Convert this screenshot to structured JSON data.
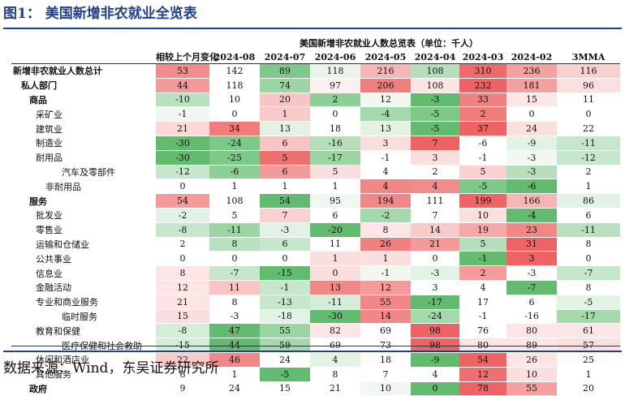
{
  "figure": {
    "title": "图1：  美国新增非农就业全览表",
    "source": "数据来源：Wind，东吴证券研究所"
  },
  "table": {
    "title": "美国新增非农就业人数总览表（单位：千人）",
    "headers": [
      "相较上个月变化",
      "2024-08",
      "2024-07",
      "2024-06",
      "2024-05",
      "2024-04",
      "2024-03",
      "2024-02",
      "3MMA"
    ],
    "rows": [
      {
        "label": "新增非农就业人数总计",
        "level": 0,
        "values": [
          "53",
          "142",
          "89",
          "118",
          "216",
          "108",
          "310",
          "236",
          "116"
        ],
        "colors": [
          "#f28b8b",
          "#ffffff",
          "#7dc98a",
          "#e9f4ea",
          "#f7b5b5",
          "#b5dfbb",
          "#ef6a6a",
          "#f6a1a1",
          "#f9d0d0"
        ]
      },
      {
        "label": "私人部门",
        "level": 1,
        "values": [
          "44",
          "118",
          "74",
          "97",
          "206",
          "108",
          "232",
          "181",
          "96"
        ],
        "colors": [
          "#f49a9a",
          "#ffffff",
          "#9bd5a4",
          "#fdf0f0",
          "#f08080",
          "#fde5e5",
          "#ee6464",
          "#f4a0a0",
          "#fbdede"
        ]
      },
      {
        "label": "商品",
        "level": 2,
        "values": [
          "-10",
          "10",
          "20",
          "2",
          "12",
          "-3",
          "33",
          "15",
          "11"
        ],
        "colors": [
          "#b9e1bf",
          "#ffffff",
          "#f8c4c4",
          "#8ecf98",
          "#f0f8f1",
          "#63bb6f",
          "#f08181",
          "#fce6e6",
          "#ffffff"
        ]
      },
      {
        "label": "采矿业",
        "level": 3,
        "values": [
          "-1",
          "0",
          "1",
          "0",
          "-4",
          "-5",
          "2",
          "0",
          "0"
        ],
        "colors": [
          "#f0f8f1",
          "#ffffff",
          "#f9caca",
          "#ffffff",
          "#a4d9ab",
          "#7dc98a",
          "#f17c7c",
          "#ffffff",
          "#ffffff"
        ]
      },
      {
        "label": "建筑业",
        "level": 3,
        "values": [
          "21",
          "34",
          "13",
          "18",
          "13",
          "-5",
          "37",
          "24",
          "22"
        ],
        "colors": [
          "#fbd9d9",
          "#f17c7c",
          "#e4f2e6",
          "#ffffff",
          "#e4f2e6",
          "#63bb6f",
          "#ee6464",
          "#fbdede",
          "#ffffff"
        ]
      },
      {
        "label": "制造业",
        "level": 3,
        "values": [
          "-30",
          "-24",
          "6",
          "-16",
          "3",
          "7",
          "-6",
          "-9",
          "-11"
        ],
        "colors": [
          "#63bb6f",
          "#7dc98a",
          "#f8c4c4",
          "#b5dfbb",
          "#fbdede",
          "#ee6464",
          "#ffffff",
          "#e2f2e4",
          "#c7e7cc"
        ]
      },
      {
        "label": "耐用品",
        "level": 3,
        "values": [
          "-30",
          "-25",
          "5",
          "-17",
          "-1",
          "3",
          "-1",
          "-3",
          "-12"
        ],
        "colors": [
          "#63bb6f",
          "#7dc98a",
          "#ef7070",
          "#9bd5a4",
          "#ffffff",
          "#fbdede",
          "#ffffff",
          "#f0f8f1",
          "#c7e7cc"
        ]
      },
      {
        "label": "汽车及零部件",
        "level": 5,
        "values": [
          "-12",
          "-6",
          "6",
          "5",
          "4",
          "2",
          "5",
          "-3",
          "2"
        ],
        "colors": [
          "#c7e7cc",
          "#8ecf98",
          "#f49a9a",
          "#fbdede",
          "#ffffff",
          "#ffffff",
          "#fbd0d0",
          "#b5dfbb",
          "#ffffff"
        ]
      },
      {
        "label": "非耐用品",
        "level": 4,
        "values": [
          "0",
          "1",
          "1",
          "1",
          "4",
          "4",
          "-5",
          "-6",
          "1"
        ],
        "colors": [
          "#ffffff",
          "#ffffff",
          "#ffffff",
          "#ffffff",
          "#f28787",
          "#f28b8b",
          "#7dc98a",
          "#63bb6f",
          "#ffffff"
        ]
      },
      {
        "label": "服务",
        "level": 2,
        "values": [
          "54",
          "108",
          "54",
          "95",
          "194",
          "111",
          "199",
          "166",
          "86"
        ],
        "colors": [
          "#f49a9a",
          "#ffffff",
          "#63bb6f",
          "#f0f8f1",
          "#f28787",
          "#ffffff",
          "#ee6464",
          "#f7b5b5",
          "#e2f2e4"
        ]
      },
      {
        "label": "批发业",
        "level": 3,
        "values": [
          "-2",
          "5",
          "7",
          "6",
          "-2",
          "7",
          "10",
          "-4",
          "6"
        ],
        "colors": [
          "#e2f2e4",
          "#ffffff",
          "#fbd0d0",
          "#ffffff",
          "#a4d9ab",
          "#ffffff",
          "#fbdede",
          "#63bb6f",
          "#ffffff"
        ]
      },
      {
        "label": "零售业",
        "level": 3,
        "values": [
          "-8",
          "-11",
          "-3",
          "-20",
          "8",
          "14",
          "19",
          "23",
          "-11"
        ],
        "colors": [
          "#c7e7cc",
          "#9bd5a4",
          "#e2f2e4",
          "#63bb6f",
          "#fde5e5",
          "#f9caca",
          "#f6a8a8",
          "#f28787",
          "#b9e1bf"
        ]
      },
      {
        "label": "运输和仓储业",
        "level": 3,
        "values": [
          "2",
          "8",
          "6",
          "11",
          "26",
          "21",
          "5",
          "31",
          "8"
        ],
        "colors": [
          "#ffffff",
          "#b9e1bf",
          "#c7e7cc",
          "#ffffff",
          "#f08181",
          "#f49a9a",
          "#b5dfbb",
          "#ee6464",
          "#ffffff"
        ]
      },
      {
        "label": "公共事业",
        "level": 3,
        "values": [
          "0",
          "0",
          "0",
          "1",
          "1",
          "0",
          "-1",
          "3",
          "0"
        ],
        "colors": [
          "#ffffff",
          "#ffffff",
          "#ffffff",
          "#fbdede",
          "#fbdede",
          "#ffffff",
          "#63bb6f",
          "#ee6464",
          "#ffffff"
        ]
      },
      {
        "label": "信息业",
        "level": 3,
        "values": [
          "8",
          "-7",
          "-15",
          "0",
          "-1",
          "-3",
          "2",
          "-3",
          "-7"
        ],
        "colors": [
          "#fde5e5",
          "#c7e7cc",
          "#63bb6f",
          "#fbdede",
          "#f0f8f1",
          "#e2f2e4",
          "#f49a9a",
          "#ffffff",
          "#c7e7cc"
        ]
      },
      {
        "label": "金融活动",
        "level": 3,
        "values": [
          "12",
          "11",
          "-1",
          "13",
          "12",
          "3",
          "4",
          "-7",
          "8"
        ],
        "colors": [
          "#fde5e5",
          "#f8c4c4",
          "#c7e7cc",
          "#f28787",
          "#f49a9a",
          "#ffffff",
          "#ffffff",
          "#63bb6f",
          "#ffffff"
        ]
      },
      {
        "label": "专业和商业服务",
        "level": 3,
        "values": [
          "21",
          "8",
          "-13",
          "-11",
          "55",
          "-17",
          "17",
          "6",
          "-5"
        ],
        "colors": [
          "#fde5e5",
          "#ffffff",
          "#c7e7cc",
          "#d4edd8",
          "#f28787",
          "#63bb6f",
          "#ffffff",
          "#ffffff",
          "#e2f2e4"
        ]
      },
      {
        "label": "临时服务",
        "level": 5,
        "values": [
          "15",
          "-3",
          "-18",
          "-30",
          "14",
          "-24",
          "-1",
          "-16",
          "-17"
        ],
        "colors": [
          "#fbdede",
          "#ffffff",
          "#e2f2e4",
          "#63bb6f",
          "#f28787",
          "#a4d9ab",
          "#ffffff",
          "#ffffff",
          "#a4d9ab"
        ]
      },
      {
        "label": "教育和保健",
        "level": 3,
        "values": [
          "-8",
          "47",
          "55",
          "82",
          "69",
          "98",
          "76",
          "80",
          "61"
        ],
        "colors": [
          "#d4edd8",
          "#63bb6f",
          "#9bd5a4",
          "#fde5e5",
          "#ffffff",
          "#ee6464",
          "#ffffff",
          "#fde5e5",
          "#fde5e5"
        ]
      },
      {
        "label": "医疗保健和社会救助",
        "level": 5,
        "values": [
          "-15",
          "44",
          "59",
          "69",
          "73",
          "98",
          "80",
          "89",
          "57"
        ],
        "colors": [
          "#d4edd8",
          "#63bb6f",
          "#a4d9ab",
          "#ffffff",
          "#ffffff",
          "#ee6464",
          "#fde5e5",
          "#fde5e5",
          "#fbdede"
        ]
      },
      {
        "label": "休闲和酒店业",
        "level": 3,
        "values": [
          "22",
          "46",
          "24",
          "4",
          "18",
          "-9",
          "54",
          "26",
          "25"
        ],
        "colors": [
          "#f9caca",
          "#f28787",
          "#ffffff",
          "#e2f2e4",
          "#ffffff",
          "#63bb6f",
          "#ee6464",
          "#fde5e5",
          "#ffffff"
        ]
      },
      {
        "label": "其他服务",
        "level": 3,
        "values": [
          "6",
          "1",
          "-5",
          "8",
          "7",
          "4",
          "12",
          "10",
          "1"
        ],
        "colors": [
          "#ffffff",
          "#ffffff",
          "#63bb6f",
          "#ffffff",
          "#ffffff",
          "#ffffff",
          "#ef7070",
          "#fbdede",
          "#ffffff"
        ]
      },
      {
        "label": "政府",
        "level": 2,
        "values": [
          "9",
          "24",
          "15",
          "21",
          "10",
          "0",
          "78",
          "55",
          "20"
        ],
        "colors": [
          "#ffffff",
          "#ffffff",
          "#ffffff",
          "#ffffff",
          "#f0f8f1",
          "#63bb6f",
          "#ee6464",
          "#f6a1a1",
          "#ffffff"
        ]
      }
    ]
  }
}
